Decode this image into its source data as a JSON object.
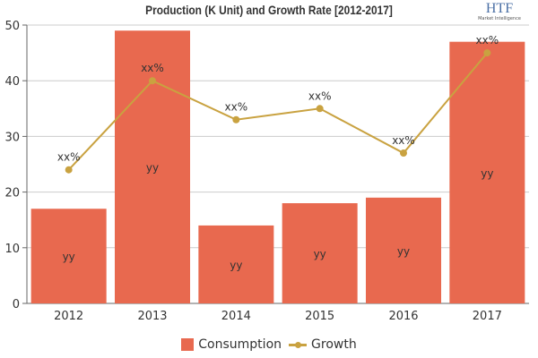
{
  "chart_data": {
    "type": "bar",
    "title": "Production (K Unit) and Growth Rate [2012-2017]",
    "categories": [
      "2012",
      "2013",
      "2014",
      "2015",
      "2016",
      "2017"
    ],
    "ylim": [
      0,
      50
    ],
    "yticks": [
      0,
      10,
      20,
      30,
      40,
      50
    ],
    "grid": true,
    "legend_placement": "bottom",
    "series": [
      {
        "name": "Consumption",
        "type": "bar",
        "color": "#e8694f",
        "values": [
          17,
          49,
          14,
          18,
          19,
          47
        ],
        "labels": [
          "yy",
          "yy",
          "yy",
          "yy",
          "yy",
          "yy"
        ]
      },
      {
        "name": "Growth",
        "type": "line",
        "color": "#c9a240",
        "values": [
          24,
          40,
          33,
          35,
          27,
          45
        ],
        "labels": [
          "xx%",
          "xx%",
          "xx%",
          "xx%",
          "xx%",
          "xx%"
        ]
      }
    ]
  },
  "logo": {
    "text": "HTF",
    "subtext": "Market Intelligence"
  }
}
